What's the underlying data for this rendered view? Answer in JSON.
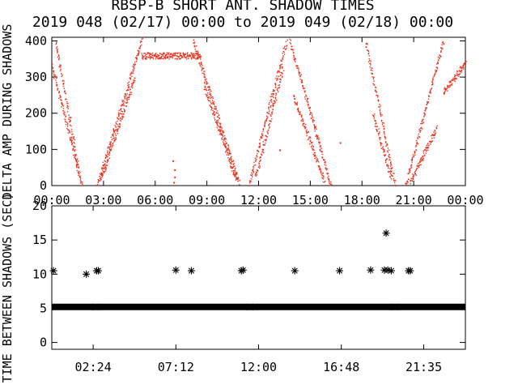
{
  "title": {
    "line1": "RBSP-B SHORT ANT. SHADOW TIMES",
    "line2": "2019 048 (02/17) 00:00 to 2019 049 (02/18) 00:00"
  },
  "colors": {
    "axes": "#000000",
    "top_series": "#e8321e",
    "bottom_series": "#000000",
    "background": "#ffffff"
  },
  "chart_data": [
    {
      "type": "scatter",
      "ylabel": "DELTA AMP DURING SHADOWS",
      "xlim": [
        0,
        24
      ],
      "ylim": [
        0,
        410
      ],
      "xticks": [
        "00:00",
        "03:00",
        "06:00",
        "09:00",
        "12:00",
        "15:00",
        "18:00",
        "21:00",
        "00:00"
      ],
      "yticks": [
        "0",
        "100",
        "200",
        "300",
        "400"
      ],
      "series": [
        {
          "color": "#e8321e",
          "arcs": [
            {
              "start": 0.0,
              "end": 1.75,
              "y_start": 330,
              "y_end": 0
            },
            {
              "start": 0.2,
              "end": 1.6,
              "y_start": 400,
              "y_end": 30
            },
            {
              "start": 2.6,
              "end": 5.2,
              "y_start": 0,
              "y_end": 400
            },
            {
              "start": 2.8,
              "end": 4.8,
              "y_start": 15,
              "y_end": 300
            },
            {
              "start": 5.2,
              "end": 8.6,
              "y_start": 360,
              "y_end": 360
            },
            {
              "start": 8.2,
              "end": 10.9,
              "y_start": 400,
              "y_end": 0
            },
            {
              "start": 8.8,
              "end": 10.7,
              "y_start": 280,
              "y_end": 15
            },
            {
              "start": 11.4,
              "end": 13.6,
              "y_start": 0,
              "y_end": 400
            },
            {
              "start": 11.8,
              "end": 13.4,
              "y_start": 20,
              "y_end": 330
            },
            {
              "start": 13.8,
              "end": 16.2,
              "y_start": 400,
              "y_end": 0
            },
            {
              "start": 14.0,
              "end": 15.8,
              "y_start": 250,
              "y_end": 15
            },
            {
              "start": 18.2,
              "end": 19.9,
              "y_start": 400,
              "y_end": 0
            },
            {
              "start": 18.6,
              "end": 19.7,
              "y_start": 200,
              "y_end": 20
            },
            {
              "start": 20.5,
              "end": 22.7,
              "y_start": 0,
              "y_end": 400
            },
            {
              "start": 20.8,
              "end": 22.3,
              "y_start": 10,
              "y_end": 160
            },
            {
              "start": 22.7,
              "end": 24.0,
              "y_start": 260,
              "y_end": 340
            }
          ],
          "isolated_points": [
            {
              "x": 7.1,
              "y": 45
            },
            {
              "x": 7.1,
              "y": 25
            },
            {
              "x": 7.05,
              "y": 10
            },
            {
              "x": 7.0,
              "y": 70
            },
            {
              "x": 1.05,
              "y": 190
            },
            {
              "x": 16.7,
              "y": 120
            },
            {
              "x": 13.2,
              "y": 100
            }
          ]
        }
      ]
    },
    {
      "type": "scatter",
      "ylabel": "TIME BETWEEN SHADOWS (SEC)",
      "xlim": [
        0,
        24
      ],
      "ylim": [
        -1,
        20
      ],
      "xticks": [
        "02:24",
        "07:12",
        "12:00",
        "16:48",
        "21:35"
      ],
      "yticks": [
        "0",
        "5",
        "10",
        "15",
        "20"
      ],
      "baseline": {
        "y": 5.2,
        "start": 0.0,
        "end": 24.0
      },
      "series": [
        {
          "color": "#000000",
          "marker": "asterisk",
          "points": [
            {
              "x": 0.1,
              "y": 10.5
            },
            {
              "x": 2.0,
              "y": 10.0
            },
            {
              "x": 2.6,
              "y": 10.5
            },
            {
              "x": 2.7,
              "y": 10.5
            },
            {
              "x": 7.2,
              "y": 10.6
            },
            {
              "x": 8.1,
              "y": 10.5
            },
            {
              "x": 11.0,
              "y": 10.5
            },
            {
              "x": 11.1,
              "y": 10.6
            },
            {
              "x": 14.1,
              "y": 10.5
            },
            {
              "x": 16.7,
              "y": 10.5
            },
            {
              "x": 18.5,
              "y": 10.6
            },
            {
              "x": 19.3,
              "y": 10.6
            },
            {
              "x": 19.4,
              "y": 16.0
            },
            {
              "x": 19.5,
              "y": 10.6
            },
            {
              "x": 19.7,
              "y": 10.5
            },
            {
              "x": 20.7,
              "y": 10.5
            },
            {
              "x": 20.8,
              "y": 10.5
            }
          ]
        }
      ]
    }
  ]
}
